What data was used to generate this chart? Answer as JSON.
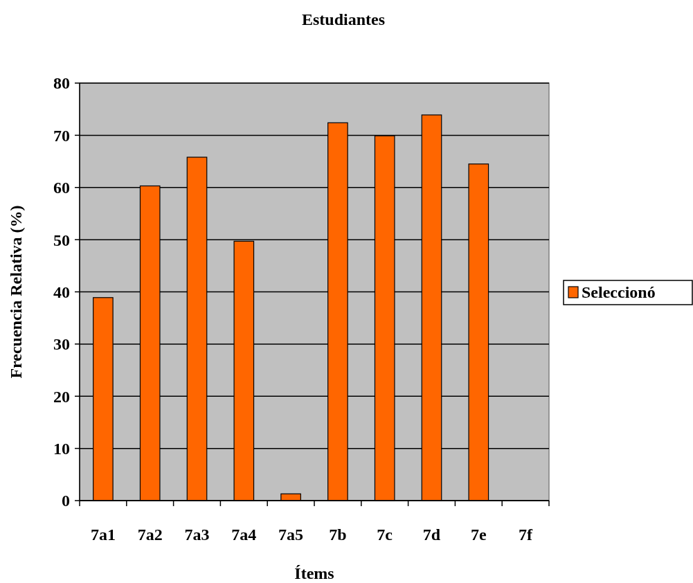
{
  "chart_data": {
    "type": "bar",
    "title": "Estudiantes",
    "xlabel": "Ítems",
    "ylabel": "Frecuencia Relativa (%)",
    "categories": [
      "7a1",
      "7a2",
      "7a3",
      "7a4",
      "7a5",
      "7b",
      "7c",
      "7d",
      "7e",
      "7f"
    ],
    "series": [
      {
        "name": "Seleccionó",
        "color": "#ff6600",
        "values": [
          38.9,
          60.3,
          65.8,
          49.7,
          1.3,
          72.4,
          69.9,
          73.9,
          64.5,
          0
        ]
      }
    ],
    "ylim": [
      0,
      80
    ],
    "yticks": [
      0,
      10,
      20,
      30,
      40,
      50,
      60,
      70,
      80
    ],
    "grid": "y",
    "legend": "right"
  }
}
